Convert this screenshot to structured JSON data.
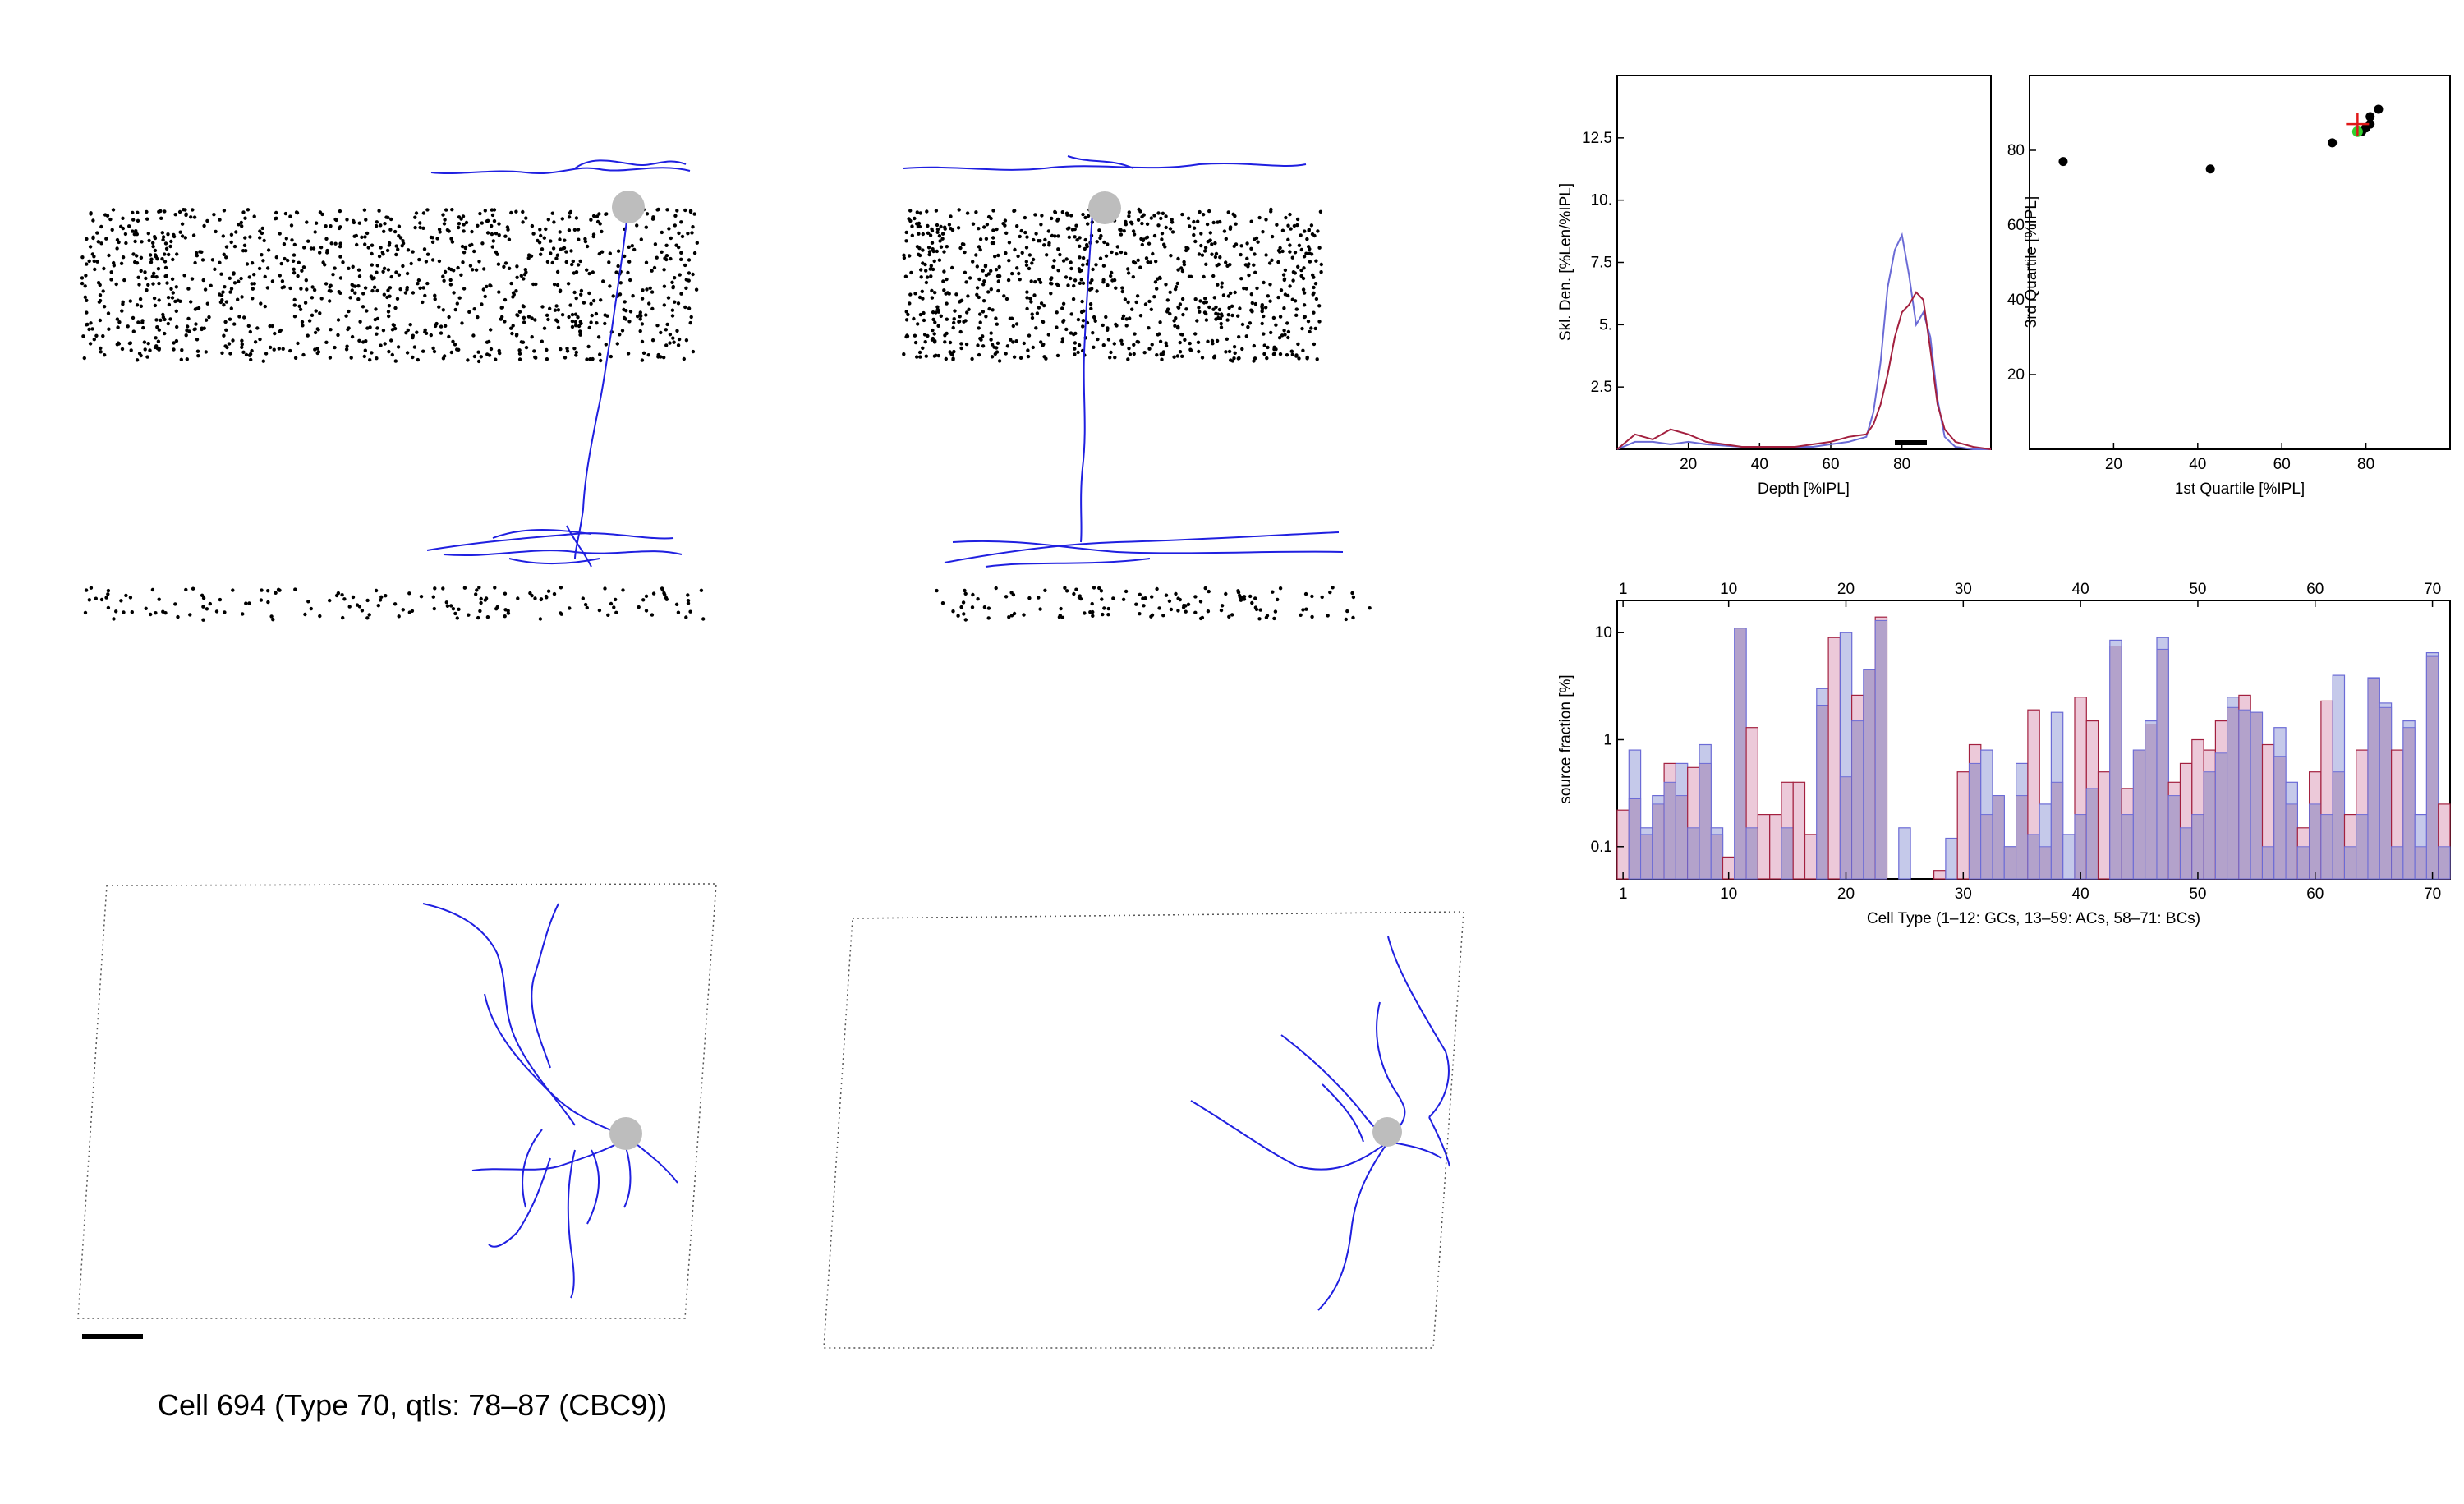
{
  "caption": "Cell 694 (Type 70, qtls: 78–87 (CBC9))",
  "colors": {
    "neurite": "#1f1fe0",
    "soma": "#bdbdbd",
    "point": "#000000",
    "series_blue": "#6b6bd6",
    "series_red": "#a3203f",
    "hist_blue_fill": "#c5c9ea",
    "hist_red_fill": "#ecc9d9",
    "hist_overlap": "#b3a2cb",
    "marker_red": "#e01818",
    "marker_green": "#2fd02f"
  },
  "chart_data": [
    {
      "type": "line",
      "xlabel": "Depth [%IPL]",
      "ylabel": "Skl. Den. [%Len/%IPL]",
      "xlim": [
        0,
        105
      ],
      "ylim": [
        0,
        15
      ],
      "x_ticks": [
        20,
        40,
        60,
        80
      ],
      "y_ticks": [
        2.5,
        5,
        7.5,
        10,
        12.5
      ],
      "y_tick_labels": [
        "2.5",
        "5.",
        "7.5",
        "10.",
        "12.5"
      ],
      "bar_interval": [
        78,
        87
      ],
      "series": [
        {
          "color": "blue",
          "x": [
            0,
            5,
            10,
            15,
            20,
            25,
            30,
            35,
            40,
            45,
            50,
            55,
            60,
            65,
            70,
            72,
            74,
            76,
            78,
            80,
            82,
            84,
            86,
            88,
            90,
            92,
            95,
            100,
            105
          ],
          "y": [
            0,
            0.3,
            0.3,
            0.2,
            0.3,
            0.2,
            0.15,
            0.1,
            0.1,
            0.1,
            0.1,
            0.1,
            0.2,
            0.3,
            0.5,
            1.5,
            3.5,
            6.5,
            8.0,
            8.6,
            7.0,
            5.0,
            5.5,
            4.5,
            2.0,
            0.5,
            0.1,
            0,
            0
          ]
        },
        {
          "color": "red",
          "x": [
            0,
            5,
            10,
            15,
            20,
            25,
            30,
            35,
            40,
            45,
            50,
            55,
            60,
            65,
            70,
            72,
            74,
            76,
            78,
            80,
            82,
            84,
            86,
            88,
            90,
            92,
            95,
            100,
            105
          ],
          "y": [
            0,
            0.6,
            0.4,
            0.8,
            0.6,
            0.3,
            0.2,
            0.1,
            0.1,
            0.1,
            0.1,
            0.2,
            0.3,
            0.5,
            0.6,
            1.0,
            1.8,
            3.0,
            4.5,
            5.5,
            5.8,
            6.3,
            6.0,
            4.0,
            1.8,
            0.8,
            0.3,
            0.1,
            0
          ]
        }
      ]
    },
    {
      "type": "scatter",
      "xlabel": "1st Quartile [%IPL]",
      "ylabel": "3rd Quartile [%IPL]",
      "xlim": [
        0,
        100
      ],
      "ylim": [
        0,
        100
      ],
      "x_ticks": [
        20,
        40,
        60,
        80
      ],
      "y_ticks": [
        20,
        40,
        60,
        80
      ],
      "points": [
        {
          "x": 8,
          "y": 77
        },
        {
          "x": 43,
          "y": 75
        },
        {
          "x": 72,
          "y": 82
        },
        {
          "x": 81,
          "y": 87
        },
        {
          "x": 81,
          "y": 89
        },
        {
          "x": 83,
          "y": 91
        },
        {
          "x": 79,
          "y": 85
        },
        {
          "x": 80,
          "y": 86
        }
      ],
      "highlight_green": {
        "x": 78,
        "y": 85
      },
      "highlight_cross": {
        "x": 78,
        "y": 87
      }
    },
    {
      "type": "bar",
      "log_y": true,
      "xlabel": "Cell Type (1–12: GCs, 13–59: ACs, 58–71: BCs)",
      "ylabel": "source fraction [%]",
      "xlim": [
        0.5,
        71.5
      ],
      "ylim": [
        0.05,
        20
      ],
      "x_ticks": [
        1,
        10,
        20,
        30,
        40,
        50,
        60,
        70
      ],
      "y_ticks": [
        0.1,
        1,
        10
      ],
      "y_tick_labels": [
        "0.1",
        "1",
        "10"
      ],
      "categories": [
        1,
        2,
        3,
        4,
        5,
        6,
        7,
        8,
        9,
        10,
        11,
        12,
        13,
        14,
        15,
        16,
        17,
        18,
        19,
        20,
        21,
        22,
        23,
        24,
        25,
        26,
        27,
        28,
        29,
        30,
        31,
        32,
        33,
        34,
        35,
        36,
        37,
        38,
        39,
        40,
        41,
        42,
        43,
        44,
        45,
        46,
        47,
        48,
        49,
        50,
        51,
        52,
        53,
        54,
        55,
        56,
        57,
        58,
        59,
        60,
        61,
        62,
        63,
        64,
        65,
        66,
        67,
        68,
        69,
        70,
        71
      ],
      "series": [
        {
          "color": "blue",
          "values": [
            0,
            0.8,
            0.15,
            0.3,
            0.4,
            0.6,
            0.15,
            0.9,
            0.15,
            0,
            11,
            0.15,
            0,
            0,
            0.15,
            0,
            0,
            3.0,
            0,
            10,
            1.5,
            4.5,
            13,
            0,
            0.15,
            0,
            0,
            0,
            0.12,
            0,
            0.6,
            0.8,
            0.3,
            0.1,
            0.6,
            0.13,
            0.25,
            1.8,
            0.13,
            0.2,
            0.35,
            0,
            8.5,
            0.2,
            0.8,
            1.5,
            9,
            0.3,
            0.15,
            0.2,
            0.5,
            0.75,
            2.5,
            1.9,
            1.8,
            0.1,
            1.3,
            0.4,
            0.1,
            0.25,
            0.2,
            4.0,
            0.1,
            0.2,
            3.8,
            2.2,
            0.1,
            1.5,
            0.2,
            6.5,
            0.1
          ]
        },
        {
          "color": "red",
          "values": [
            0.22,
            0.28,
            0.13,
            0.25,
            0.6,
            0.3,
            0.55,
            0.6,
            0.13,
            0.08,
            11,
            1.3,
            0.2,
            0.2,
            0.4,
            0.4,
            0.13,
            2.1,
            9,
            0.45,
            2.6,
            4.5,
            14,
            0,
            0,
            0,
            0,
            0.06,
            0,
            0.5,
            0.9,
            0.2,
            0.3,
            0.1,
            0.3,
            1.9,
            0.1,
            0.4,
            0,
            2.5,
            1.5,
            0.5,
            7.5,
            0.35,
            0.8,
            1.4,
            7,
            0.4,
            0.6,
            1.0,
            0.8,
            1.5,
            2.0,
            2.6,
            1.8,
            0.9,
            0.7,
            0.25,
            0.15,
            0.5,
            2.3,
            0.5,
            0.2,
            0.8,
            3.7,
            2.0,
            0.8,
            1.3,
            0.1,
            6.0,
            0.25
          ]
        }
      ]
    }
  ]
}
